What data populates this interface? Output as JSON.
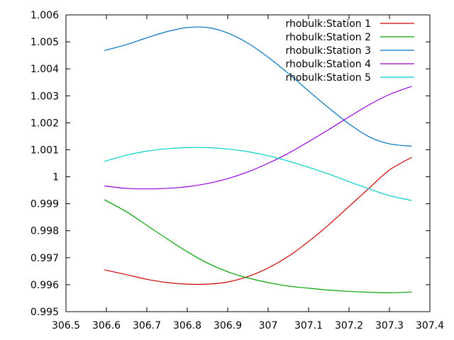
{
  "chart_data": {
    "type": "line",
    "title": "",
    "xlabel": "",
    "ylabel": "",
    "xlim": [
      306.5,
      307.4
    ],
    "ylim": [
      0.995,
      1.006
    ],
    "x_ticks": [
      "306.5",
      "306.6",
      "306.7",
      "306.8",
      "306.9",
      "307",
      "307.1",
      "307.2",
      "307.3",
      "307.4"
    ],
    "y_ticks": [
      "0.995",
      "0.996",
      "0.997",
      "0.998",
      "0.999",
      "1",
      "1.001",
      "1.002",
      "1.003",
      "1.004",
      "1.005",
      "1.006"
    ],
    "grid": false,
    "legend_position": "top-right",
    "series": [
      {
        "name": "rhobulk:Station 1",
        "color": "#cc0000",
        "x": [
          306.595,
          306.65,
          306.7,
          306.75,
          306.8,
          306.85,
          306.9,
          306.95,
          307.0,
          307.05,
          307.1,
          307.15,
          307.2,
          307.25,
          307.3,
          307.355
        ],
        "y": [
          0.99655,
          0.99637,
          0.9962,
          0.99608,
          0.99602,
          0.99602,
          0.9961,
          0.9963,
          0.99662,
          0.99705,
          0.9976,
          0.99822,
          0.9989,
          0.99958,
          1.00025,
          1.00072
        ]
      },
      {
        "name": "rhobulk:Station 2",
        "color": "#00a000",
        "x": [
          306.595,
          306.65,
          306.7,
          306.75,
          306.8,
          306.85,
          306.9,
          306.95,
          307.0,
          307.05,
          307.1,
          307.15,
          307.2,
          307.25,
          307.3,
          307.355
        ],
        "y": [
          0.99915,
          0.9987,
          0.9982,
          0.9977,
          0.99722,
          0.9968,
          0.99648,
          0.99625,
          0.99608,
          0.99595,
          0.99587,
          0.9958,
          0.99575,
          0.99572,
          0.9957,
          0.99573
        ]
      },
      {
        "name": "rhobulk:Station 3",
        "color": "#0072bd",
        "x": [
          306.595,
          306.65,
          306.7,
          306.75,
          306.8,
          306.85,
          306.9,
          306.95,
          307.0,
          307.05,
          307.1,
          307.15,
          307.2,
          307.25,
          307.3,
          307.355
        ],
        "y": [
          1.00468,
          1.0049,
          1.00515,
          1.00538,
          1.00553,
          1.00553,
          1.00533,
          1.00495,
          1.00443,
          1.00383,
          1.00318,
          1.00255,
          1.00196,
          1.00148,
          1.00122,
          1.00113
        ]
      },
      {
        "name": "rhobulk:Station 4",
        "color": "#9400d3",
        "x": [
          306.595,
          306.65,
          306.7,
          306.75,
          306.8,
          306.85,
          306.9,
          306.95,
          307.0,
          307.05,
          307.1,
          307.15,
          307.2,
          307.25,
          307.3,
          307.355
        ],
        "y": [
          0.99966,
          0.99957,
          0.99955,
          0.99957,
          0.99963,
          0.99975,
          0.99993,
          1.00018,
          1.0005,
          1.00087,
          1.0013,
          1.00175,
          1.00222,
          1.00267,
          1.00305,
          1.00335
        ]
      },
      {
        "name": "rhobulk:Station 5",
        "color": "#00cccc",
        "x": [
          306.595,
          306.65,
          306.7,
          306.75,
          306.8,
          306.85,
          306.9,
          306.95,
          307.0,
          307.05,
          307.1,
          307.15,
          307.2,
          307.25,
          307.3,
          307.355
        ],
        "y": [
          1.00057,
          1.0008,
          1.00095,
          1.00104,
          1.00108,
          1.00108,
          1.00103,
          1.00093,
          1.00078,
          1.00058,
          1.00035,
          1.0001,
          0.99982,
          0.99955,
          0.9993,
          0.99912
        ]
      }
    ]
  }
}
